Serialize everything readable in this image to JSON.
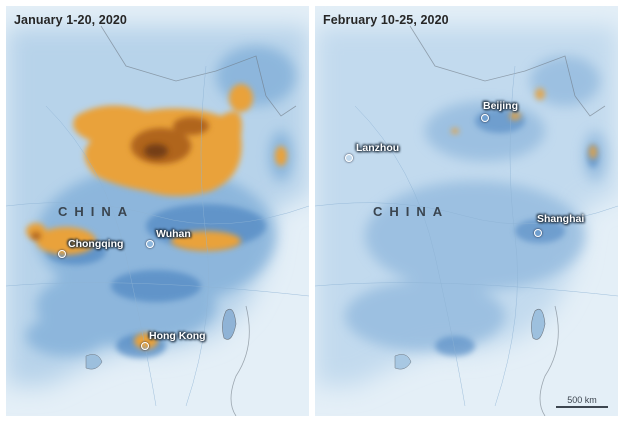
{
  "panels": {
    "left": {
      "title": "January 1-20, 2020",
      "country": "CHINA",
      "cities": [
        "Chongqing",
        "Wuhan",
        "Hong Kong"
      ]
    },
    "right": {
      "title": "February 10-25, 2020",
      "country": "CHINA",
      "cities": [
        "Beijing",
        "Lanzhou",
        "Shanghai"
      ],
      "scale_label": "500 km"
    }
  },
  "colors": {
    "ocean": "#dcebf5",
    "background_field": "#c4dcee",
    "low_pollution": "#5d93c9",
    "medium_pollution": "#e9a23b",
    "high_pollution": "#a45818",
    "border": "#6d7680"
  }
}
